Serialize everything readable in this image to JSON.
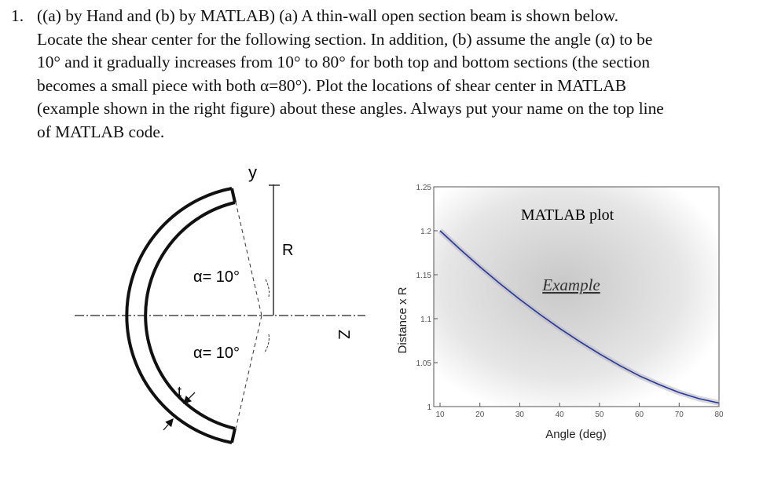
{
  "problem": {
    "number": "1.",
    "lines": [
      "((a) by Hand and (b) by MATLAB) (a) A thin-wall open section beam is shown below.",
      "Locate the shear center for the following section.  In addition, (b) assume the angle (α) to be",
      "10° and it gradually increases from 10° to 80° for both top and bottom sections (the section",
      "becomes a small piece with both α=80°). Plot the locations of shear center in MATLAB",
      "(example shown in the right figure) about these angles. Always put your name on the top line",
      "of MATLAB code."
    ]
  },
  "diagram": {
    "y_label": "y",
    "z_label": "Z",
    "r_label": "R",
    "t_label": "t",
    "alpha_top": "α= 10°",
    "alpha_bottom": "α= 10°"
  },
  "chart_data": {
    "type": "line",
    "title": "MATLAB plot",
    "annotation": "Example",
    "xlabel": "Angle (deg)",
    "ylabel": "Distance x R",
    "xlim": [
      10,
      80
    ],
    "ylim": [
      1,
      1.25
    ],
    "xticks": [
      "10",
      "20",
      "30",
      "40",
      "50",
      "60",
      "70",
      "80"
    ],
    "yticks": [
      "1",
      "1.05",
      "1.1",
      "1.15",
      "1.2",
      "1.25"
    ],
    "grid": false,
    "series": [
      {
        "color": "#2233aa",
        "x": [
          10,
          15,
          20,
          25,
          30,
          35,
          40,
          45,
          50,
          55,
          60,
          65,
          70,
          75,
          80
        ],
        "y": [
          1.2,
          1.179,
          1.159,
          1.14,
          1.122,
          1.105,
          1.089,
          1.074,
          1.06,
          1.047,
          1.035,
          1.025,
          1.016,
          1.009,
          1.004
        ]
      }
    ]
  }
}
